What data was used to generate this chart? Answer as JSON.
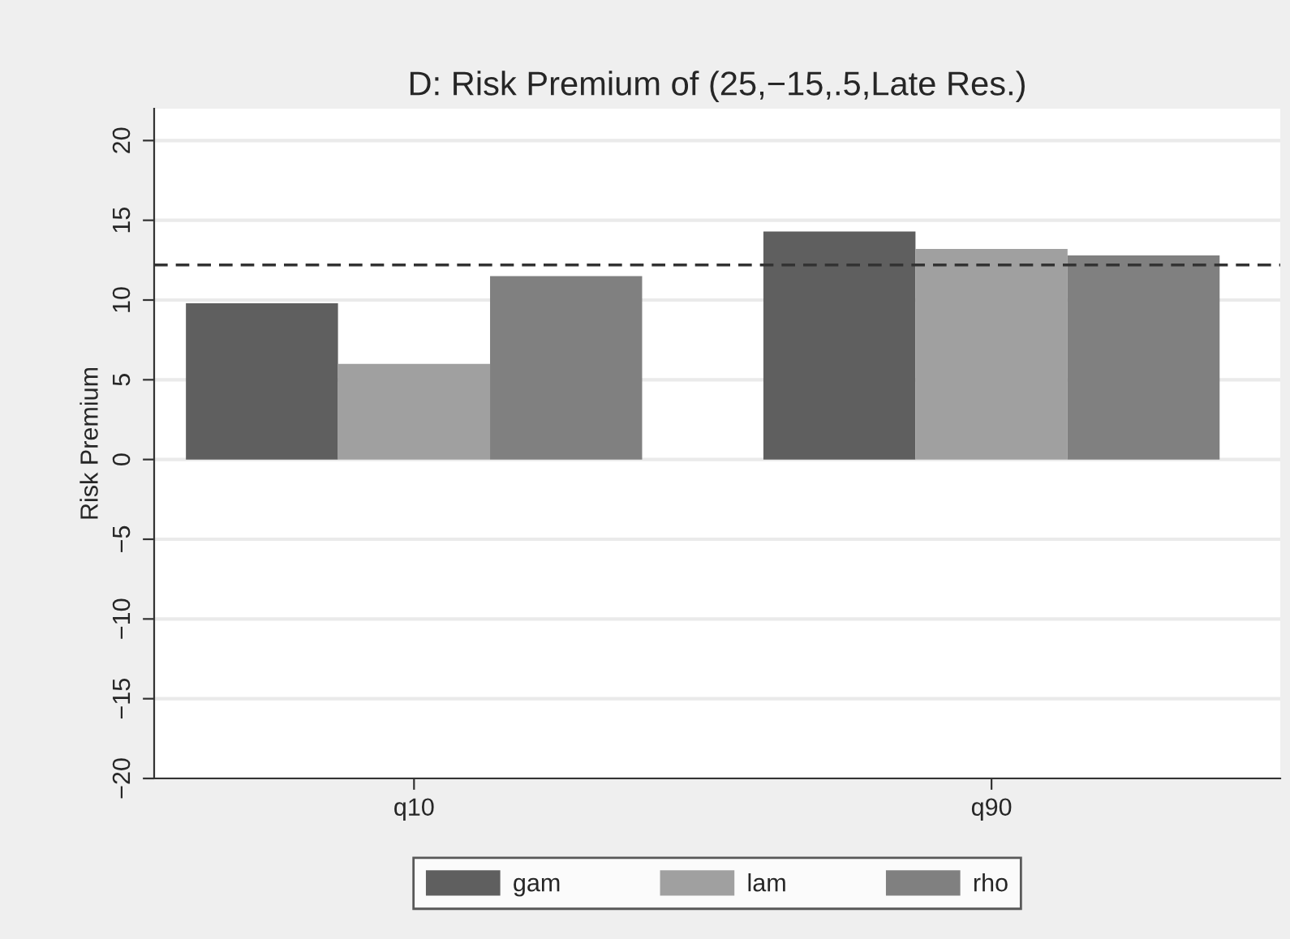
{
  "chart_data": {
    "type": "bar",
    "title": "D: Risk Premium of (25,−15,.5,Late Res.)",
    "ylabel": "Risk Premium",
    "categories": [
      "q10",
      "q90"
    ],
    "series": [
      {
        "name": "gam",
        "color": "#5f5f5f",
        "values": [
          9.8,
          14.3
        ]
      },
      {
        "name": "lam",
        "color": "#a0a0a0",
        "values": [
          6.0,
          13.2
        ]
      },
      {
        "name": "rho",
        "color": "#808080",
        "values": [
          11.5,
          12.8
        ]
      }
    ],
    "ylim": [
      -20,
      22
    ],
    "yticks": [
      {
        "value": -20,
        "label": "−20"
      },
      {
        "value": -15,
        "label": "−15"
      },
      {
        "value": -10,
        "label": "−10"
      },
      {
        "value": -5,
        "label": "−5"
      },
      0,
      5,
      10,
      15,
      20
    ],
    "ref_lines": [
      {
        "axis": "y",
        "value": 12.2,
        "color": "#333333",
        "line_style": "dashed"
      }
    ],
    "grid": "y",
    "legend": "bottom"
  }
}
